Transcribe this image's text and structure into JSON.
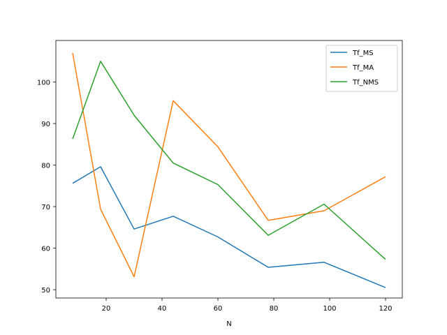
{
  "chart_data": {
    "type": "line",
    "title": "",
    "xlabel": "N",
    "ylabel": "",
    "xlim": [
      2,
      126
    ],
    "ylim": [
      48,
      110
    ],
    "xticks": [
      20,
      40,
      60,
      80,
      100,
      120
    ],
    "yticks": [
      50,
      60,
      70,
      80,
      90,
      100
    ],
    "grid": false,
    "legend_position": "top-right",
    "x": [
      8,
      18,
      30,
      44,
      60,
      78,
      98,
      120
    ],
    "series": [
      {
        "name": "Tf_MS",
        "color": "#1f77b4",
        "values": [
          75.6,
          79.6,
          64.6,
          67.7,
          62.7,
          55.4,
          56.6,
          50.5
        ]
      },
      {
        "name": "Tf_MA",
        "color": "#ff7f0e",
        "values": [
          107.0,
          69.4,
          53.1,
          95.5,
          84.4,
          66.7,
          69.0,
          77.2
        ]
      },
      {
        "name": "Tf_NMS",
        "color": "#2ca02c",
        "values": [
          86.3,
          105.0,
          92.0,
          80.5,
          75.3,
          63.1,
          70.6,
          57.3
        ]
      }
    ]
  }
}
